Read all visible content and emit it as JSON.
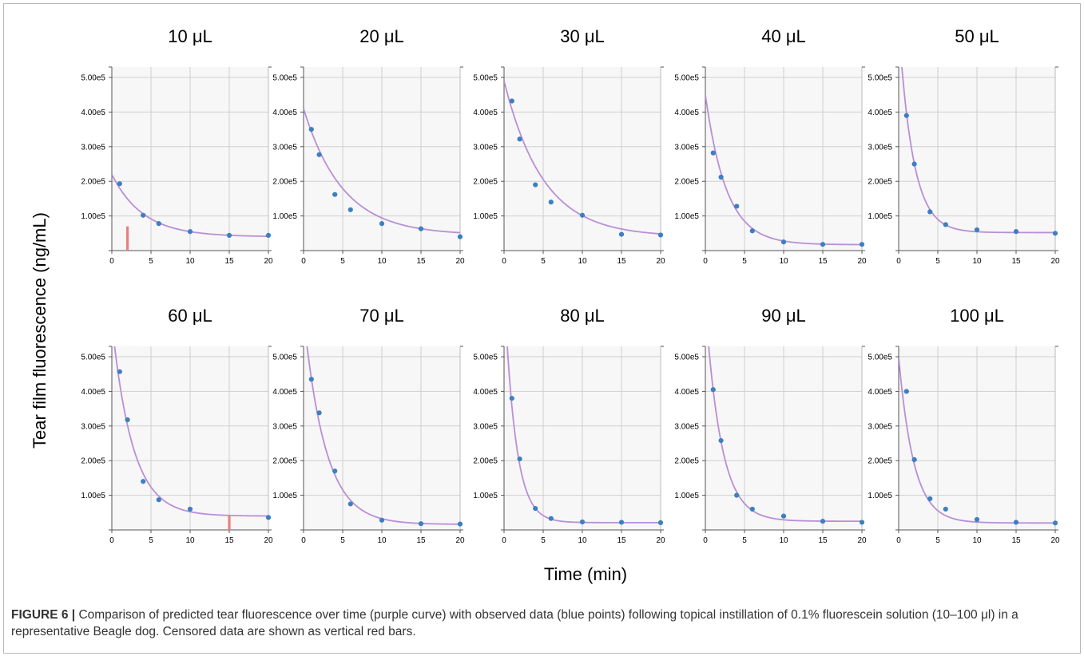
{
  "figure": {
    "caption_label": "FIGURE 6 |",
    "caption_text": " Comparison of predicted tear fluorescence over time (purple curve) with observed data (blue points) following topical instillation of 0.1% fluorescein solution (10–100 μl) in a representative Beagle dog. Censored data are shown as vertical red bars."
  },
  "colors": {
    "curve": "#b98fd6",
    "points": "#3d7fc1",
    "censored": "#e8817f",
    "grid": "#cfcfcf",
    "panel_bg": "#f7f7f7"
  },
  "chart_data": [
    {
      "type": "scatter",
      "title": "10 μL",
      "xlabel": "Time (min)",
      "ylabel": "Tear film fluorescence (ng/mL)",
      "xlim": [
        0,
        20
      ],
      "ylim": [
        0,
        530000
      ],
      "x_ticks": [
        "0",
        "5",
        "10",
        "15",
        "20"
      ],
      "y_ticks": [
        "1.00e5",
        "2.00e5",
        "3.00e5",
        "4.00e5",
        "5.00e5"
      ],
      "observed": {
        "x": [
          1,
          4,
          6,
          10,
          15,
          20
        ],
        "y": [
          193000,
          102000,
          78000,
          55000,
          44000,
          44000
        ]
      },
      "predicted": {
        "C0": 220000,
        "plateau": 40000,
        "k": 0.25
      },
      "censored": [
        {
          "x": 2,
          "y": 70000
        }
      ]
    },
    {
      "type": "scatter",
      "title": "20 μL",
      "xlim": [
        0,
        20
      ],
      "ylim": [
        0,
        530000
      ],
      "x_ticks": [
        "0",
        "5",
        "10",
        "15",
        "20"
      ],
      "y_ticks": [
        "1.00e5",
        "2.00e5",
        "3.00e5",
        "4.00e5",
        "5.00e5"
      ],
      "observed": {
        "x": [
          1,
          2,
          4,
          6,
          10,
          15,
          20
        ],
        "y": [
          350000,
          277000,
          162000,
          118000,
          78000,
          63000,
          40000
        ]
      },
      "predicted": {
        "C0": 410000,
        "plateau": 45000,
        "k": 0.2
      },
      "censored": []
    },
    {
      "type": "scatter",
      "title": "30 μL",
      "xlim": [
        0,
        20
      ],
      "ylim": [
        0,
        530000
      ],
      "x_ticks": [
        "0",
        "5",
        "10",
        "15",
        "20"
      ],
      "y_ticks": [
        "1.00e5",
        "2.00e5",
        "3.00e5",
        "4.00e5",
        "5.00e5"
      ],
      "observed": {
        "x": [
          1,
          2,
          4,
          6,
          10,
          15,
          20
        ],
        "y": [
          432000,
          322000,
          190000,
          140000,
          102000,
          47000,
          45000
        ]
      },
      "predicted": {
        "C0": 490000,
        "plateau": 40000,
        "k": 0.2
      },
      "censored": []
    },
    {
      "type": "scatter",
      "title": "40 μL",
      "xlim": [
        0,
        20
      ],
      "ylim": [
        0,
        530000
      ],
      "x_ticks": [
        "0",
        "5",
        "10",
        "15",
        "20"
      ],
      "y_ticks": [
        "1.00e5",
        "2.00e5",
        "3.00e5",
        "4.00e5",
        "5.00e5"
      ],
      "observed": {
        "x": [
          1,
          2,
          4,
          6,
          10,
          15,
          20
        ],
        "y": [
          282000,
          212000,
          128000,
          57000,
          25000,
          18000,
          18000
        ]
      },
      "predicted": {
        "C0": 450000,
        "plateau": 17000,
        "k": 0.37
      },
      "censored": []
    },
    {
      "type": "scatter",
      "title": "50 μL",
      "xlim": [
        0,
        20
      ],
      "ylim": [
        0,
        530000
      ],
      "x_ticks": [
        "0",
        "5",
        "10",
        "15",
        "20"
      ],
      "y_ticks": [
        "1.00e5",
        "2.00e5",
        "3.00e5",
        "4.00e5",
        "5.00e5"
      ],
      "observed": {
        "x": [
          1,
          2,
          4,
          6,
          10,
          15,
          20
        ],
        "y": [
          390000,
          250000,
          112000,
          75000,
          60000,
          55000,
          50000
        ]
      },
      "predicted": {
        "C0": 650000,
        "plateau": 52000,
        "k": 0.55
      },
      "censored": []
    },
    {
      "type": "scatter",
      "title": "60 μL",
      "xlim": [
        0,
        20
      ],
      "ylim": [
        0,
        530000
      ],
      "x_ticks": [
        "0",
        "5",
        "10",
        "15",
        "20"
      ],
      "y_ticks": [
        "1.00e5",
        "2.00e5",
        "3.00e5",
        "4.00e5",
        "5.00e5"
      ],
      "observed": {
        "x": [
          1,
          2,
          4,
          6,
          10,
          20
        ],
        "y": [
          457000,
          318000,
          140000,
          87000,
          60000,
          36000
        ]
      },
      "predicted": {
        "C0": 600000,
        "plateau": 40000,
        "k": 0.38
      },
      "censored": [
        {
          "x": 15,
          "y": 40000
        }
      ]
    },
    {
      "type": "scatter",
      "title": "70 μL",
      "xlim": [
        0,
        20
      ],
      "ylim": [
        0,
        530000
      ],
      "x_ticks": [
        "0",
        "5",
        "10",
        "15",
        "20"
      ],
      "y_ticks": [
        "1.00e5",
        "2.00e5",
        "3.00e5",
        "4.00e5",
        "5.00e5"
      ],
      "observed": {
        "x": [
          1,
          2,
          4,
          6,
          10,
          15,
          20
        ],
        "y": [
          435000,
          338000,
          170000,
          75000,
          28000,
          18000,
          17000
        ]
      },
      "predicted": {
        "C0": 620000,
        "plateau": 16000,
        "k": 0.36
      },
      "censored": []
    },
    {
      "type": "scatter",
      "title": "80 μL",
      "xlim": [
        0,
        20
      ],
      "ylim": [
        0,
        530000
      ],
      "x_ticks": [
        "0",
        "5",
        "10",
        "15",
        "20"
      ],
      "y_ticks": [
        "1.00e5",
        "2.00e5",
        "3.00e5",
        "4.00e5",
        "5.00e5"
      ],
      "observed": {
        "x": [
          1,
          2,
          4,
          6,
          10,
          15,
          20
        ],
        "y": [
          380000,
          205000,
          62000,
          33000,
          23000,
          22000,
          21000
        ]
      },
      "predicted": {
        "C0": 700000,
        "plateau": 21000,
        "k": 0.7
      },
      "censored": []
    },
    {
      "type": "scatter",
      "title": "90 μL",
      "xlim": [
        0,
        20
      ],
      "ylim": [
        0,
        530000
      ],
      "x_ticks": [
        "0",
        "5",
        "10",
        "15",
        "20"
      ],
      "y_ticks": [
        "1.00e5",
        "2.00e5",
        "3.00e5",
        "4.00e5",
        "5.00e5"
      ],
      "observed": {
        "x": [
          1,
          2,
          4,
          6,
          10,
          15,
          20
        ],
        "y": [
          405000,
          258000,
          100000,
          60000,
          40000,
          25000,
          22000
        ]
      },
      "predicted": {
        "C0": 650000,
        "plateau": 25000,
        "k": 0.5
      },
      "censored": []
    },
    {
      "type": "scatter",
      "title": "100 μL",
      "xlim": [
        0,
        20
      ],
      "ylim": [
        0,
        530000
      ],
      "x_ticks": [
        "0",
        "5",
        "10",
        "15",
        "20"
      ],
      "y_ticks": [
        "1.00e5",
        "2.00e5",
        "3.00e5",
        "4.00e5",
        "5.00e5"
      ],
      "observed": {
        "x": [
          1,
          2,
          4,
          6,
          10,
          15,
          20
        ],
        "y": [
          400000,
          203000,
          90000,
          60000,
          30000,
          22000,
          20000
        ]
      },
      "predicted": {
        "C0": 500000,
        "plateau": 20000,
        "k": 0.52
      },
      "censored": []
    }
  ]
}
